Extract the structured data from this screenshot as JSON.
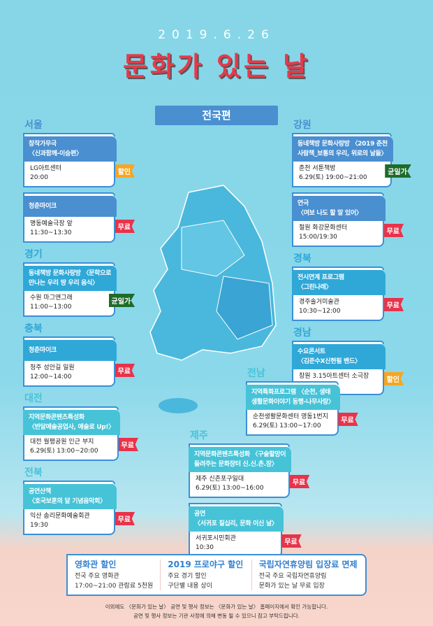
{
  "header": {
    "date": "2019.6.26",
    "logo_text": "문화가 있는 날",
    "edition": "전국편"
  },
  "colors": {
    "dark_blue": "#4a8fd0",
    "mid_blue": "#2fa8d8",
    "teal": "#47c3d8",
    "discount": "#f5a623",
    "free": "#e8334a",
    "flat": "#1e6b2a"
  },
  "regions": [
    {
      "name": "서울",
      "events": [
        {
          "title": "창작가무극",
          "subtitle": "〈신과함께-이승편〉",
          "venue": "LG아트센터",
          "time": "20:00",
          "badge": "할인"
        },
        {
          "title": "청춘마이크",
          "subtitle": "",
          "venue": "명동예술극장 앞",
          "time": "11:30~13:30",
          "badge": "무료"
        }
      ]
    },
    {
      "name": "경기",
      "events": [
        {
          "title": "동네책방 문화사랑방 〈문학으로",
          "subtitle": "만나는 우리 땅 우리 음식〉",
          "venue": "수원 마그앤그래",
          "time": "11:00~13:00",
          "badge": "균일가"
        }
      ]
    },
    {
      "name": "충북",
      "events": [
        {
          "title": "청춘마이크",
          "subtitle": "",
          "venue": "청주 성안길 일원",
          "time": "12:00~14:00",
          "badge": "무료"
        }
      ]
    },
    {
      "name": "대전",
      "events": [
        {
          "title": "지역문화콘텐츠특성화",
          "subtitle": "〈반달예술공업사, 예술로 Up!〉",
          "venue": "대전 월평공원 인근 부지",
          "time": "6.29(토) 13:00~20:00",
          "badge": "무료"
        }
      ]
    },
    {
      "name": "전북",
      "events": [
        {
          "title": "공연산책",
          "subtitle": "〈호국보훈의 달 기념음악회〉",
          "venue": "익산 솜리문화예술회관",
          "time": "19:30",
          "badge": "무료"
        }
      ]
    },
    {
      "name": "강원",
      "events": [
        {
          "title": "동네책방 문화사랑방 〈2019 춘천",
          "subtitle": "사람책_보통의 우리, 위로의 날들〉",
          "venue": "춘천 서툰책방",
          "time": "6.29(토) 19:00~21:00",
          "badge": "균일가"
        },
        {
          "title": "연극",
          "subtitle": "〈여보 나도 할 말 있어〉",
          "venue": "철원 화강문화센터",
          "time": "15:00/19:30",
          "badge": "무료"
        }
      ]
    },
    {
      "name": "경북",
      "events": [
        {
          "title": "전시연계 프로그램",
          "subtitle": "〈그린나래〉",
          "venue": "경주솔거미술관",
          "time": "10:30~12:00",
          "badge": "무료"
        }
      ]
    },
    {
      "name": "경남",
      "events": [
        {
          "title": "수요콘서트",
          "subtitle": "〈김준수X신현필 밴드〉",
          "venue": "창원 3.15아트센터 소극장",
          "time": "19:30",
          "badge": "할인"
        }
      ]
    },
    {
      "name": "전남",
      "events": [
        {
          "title": "지역특화프로그램 〈순천, 생태",
          "subtitle": "생활문화이야기 동행-나무사랑〉",
          "venue": "순천생활문화센터 영동1번지",
          "time": "6.29(토) 13:00~17:00",
          "badge": "무료"
        }
      ]
    },
    {
      "name": "제주",
      "events": [
        {
          "title": "지역문화콘텐츠특성화 〈구슬할망이",
          "subtitle": "들려주는 문화장터 신.신.촌.장〉",
          "venue": "제주 신촌포구일대",
          "time": "6.29(토) 13:00~16:00",
          "badge": "무료"
        },
        {
          "title": "공연",
          "subtitle": "〈서귀포 칠십리, 문화 이신 날〉",
          "venue": "서귀포시민회관",
          "time": "10:30",
          "badge": "무료"
        }
      ]
    }
  ],
  "benefits": [
    {
      "title": "영화관 할인",
      "line1": "전국 주요 영화관",
      "line2": "17:00~21:00 관람료 5천원"
    },
    {
      "title": "2019 프로야구 할인",
      "line1": "주요 경기 할인",
      "line2": "구단별 내용 상이"
    },
    {
      "title": "국립자연휴양림 입장료 면제",
      "line1": "전국 주요 국립자연휴양림",
      "line2": "문화가 있는 날 무료 입장"
    }
  ],
  "footer": {
    "line1": "이외에도 〈문화가 있는 날〉 공연 및 행사 정보는 〈문화가 있는 날〉 홈페이지에서 확인 가능합니다.",
    "line2": "공연 및 행사 정보는 기관 사정에 의해 변동 될 수 있으니 참고 부탁드립니다."
  }
}
